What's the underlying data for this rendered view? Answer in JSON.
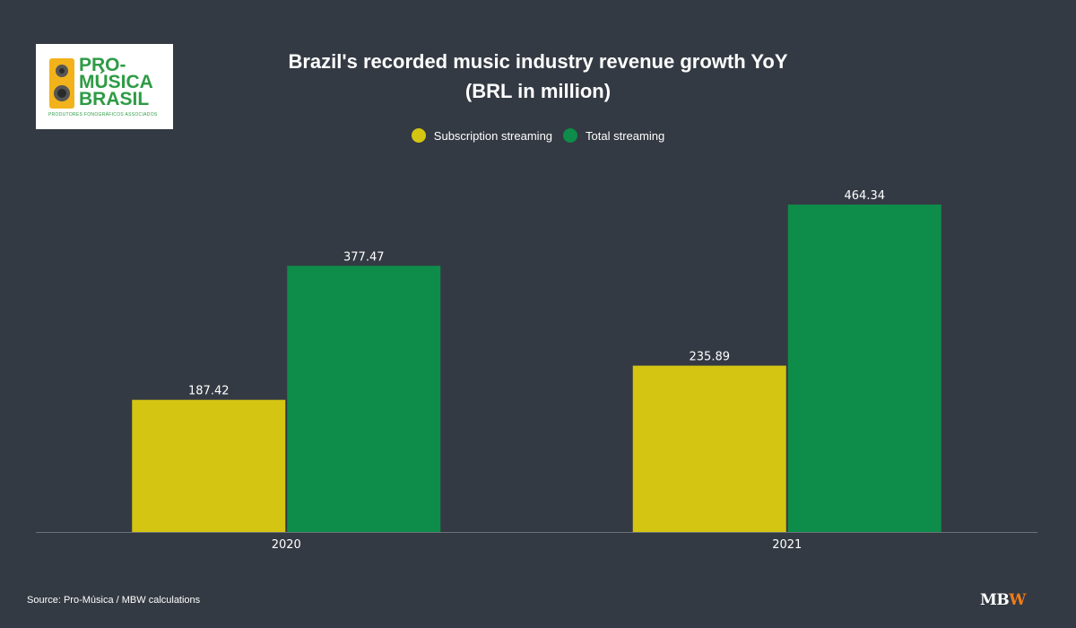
{
  "logo": {
    "line1": "PRO-",
    "line2": "MÚSICA",
    "line3": "BRASIL",
    "tagline": "PRODUTORES FONOGRÁFICOS ASSOCIADOS",
    "brand_color": "#2e9b45",
    "speaker_color": "#f2b21b"
  },
  "chart_data": {
    "type": "bar",
    "title": "Brazil's recorded music industry revenue growth YoY",
    "subtitle": "(BRL in million)",
    "categories": [
      "2020",
      "2021"
    ],
    "series": [
      {
        "name": "Subscription streaming",
        "color": "#d4c512",
        "values": [
          187.42,
          235.89
        ]
      },
      {
        "name": "Total streaming",
        "color": "#0e8c4a",
        "values": [
          377.47,
          464.34
        ]
      }
    ],
    "ylim": [
      0,
      500
    ],
    "grid": false,
    "legend_position": "top-center"
  },
  "footer": {
    "source": "Source: Pro-Música / MBW calculations",
    "brand_mb": "MB",
    "brand_w": "W"
  }
}
